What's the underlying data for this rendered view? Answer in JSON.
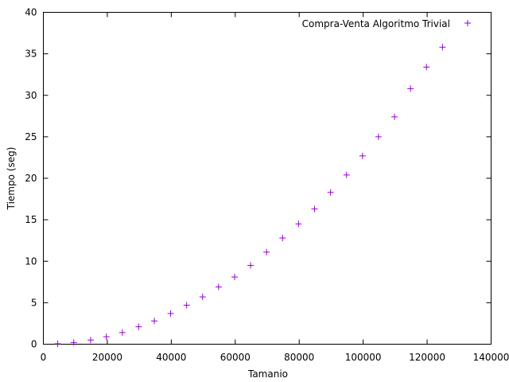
{
  "chart_data": {
    "type": "scatter",
    "title": "",
    "xlabel": "Tamanio",
    "ylabel": "Tiempo (seg)",
    "xlim": [
      0,
      140000
    ],
    "ylim": [
      0,
      40
    ],
    "xticks": [
      0,
      20000,
      40000,
      60000,
      80000,
      100000,
      120000,
      140000
    ],
    "yticks": [
      0,
      5,
      10,
      15,
      20,
      25,
      30,
      35,
      40
    ],
    "grid": false,
    "legend_position": "top-right",
    "marker": "plus",
    "series": [
      {
        "name": "Compra-Venta Algoritmo Trivial",
        "color": "#9400d3",
        "x": [
          4500,
          9500,
          14800,
          19700,
          24700,
          29800,
          34700,
          39800,
          44800,
          49800,
          54800,
          59800,
          64800,
          69800,
          74800,
          79800,
          84800,
          89800,
          94800,
          99800,
          104800,
          109800,
          114800,
          119800,
          124800
        ],
        "y": [
          0.05,
          0.2,
          0.5,
          0.9,
          1.4,
          2.1,
          2.8,
          3.7,
          4.7,
          5.7,
          6.9,
          8.1,
          9.5,
          11.1,
          12.8,
          14.5,
          16.3,
          18.3,
          20.4,
          22.7,
          25.0,
          27.4,
          30.8,
          33.4,
          35.8
        ]
      }
    ]
  }
}
